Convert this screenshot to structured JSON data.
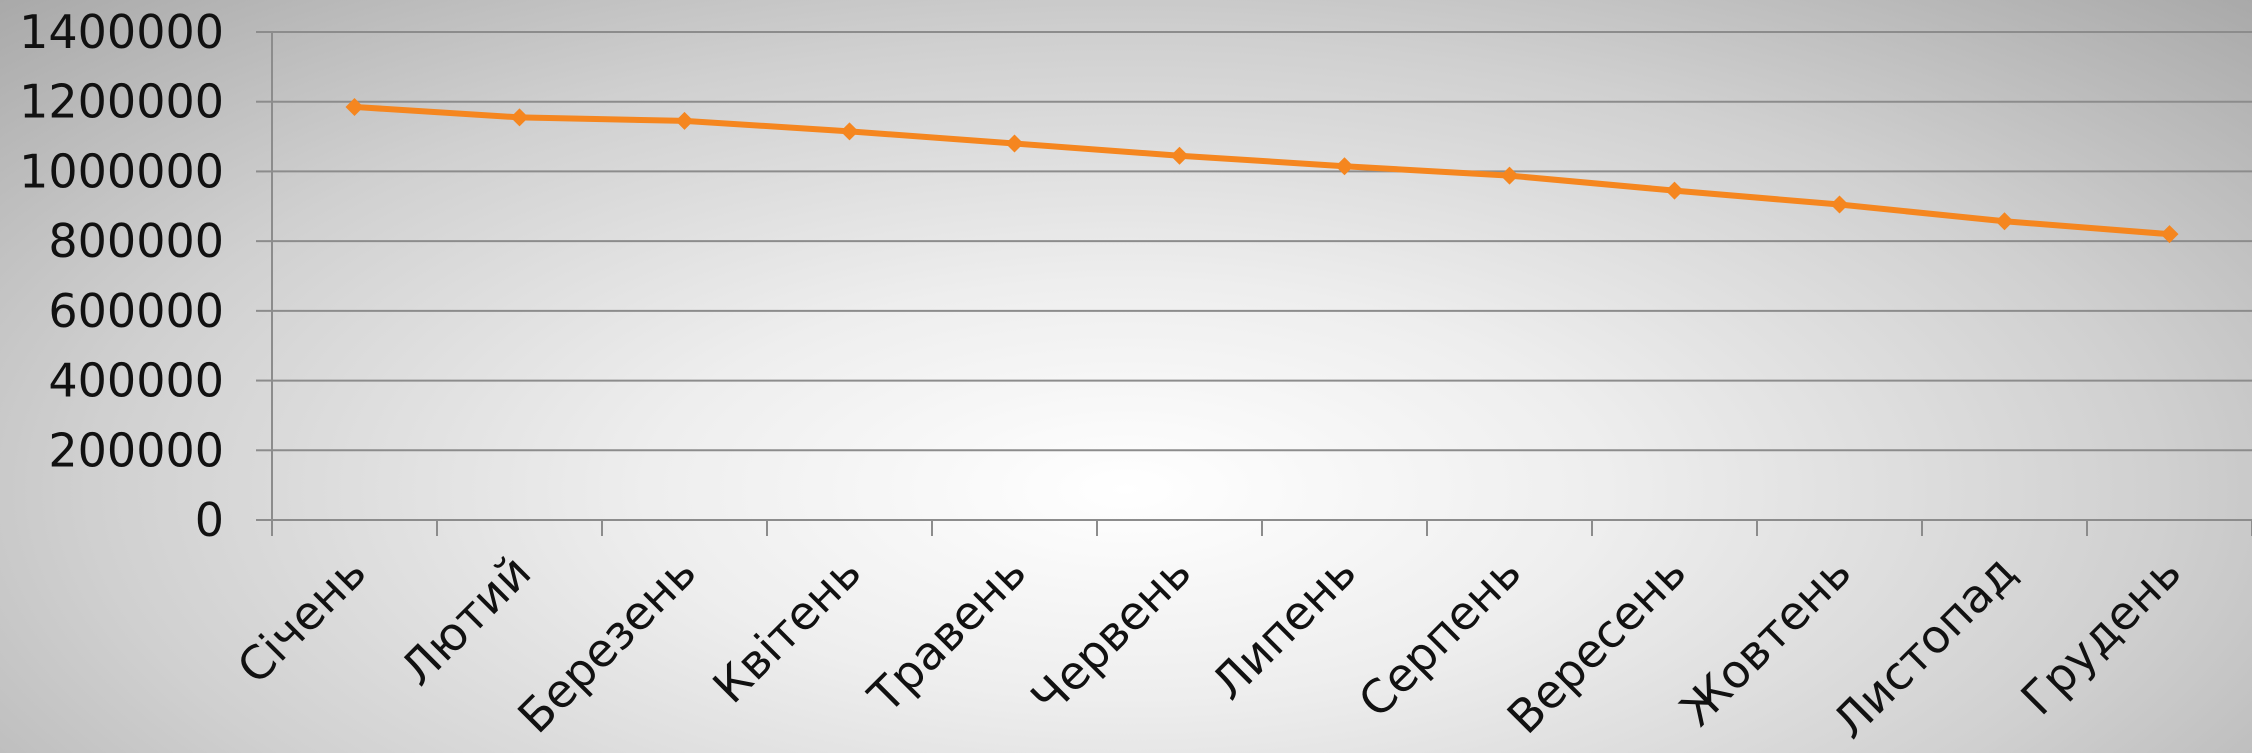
{
  "chart_data": {
    "type": "line",
    "categories": [
      "Січень",
      "Лютий",
      "Березень",
      "Квітень",
      "Травень",
      "Червень",
      "Липень",
      "Серпень",
      "Вересень",
      "Жовтень",
      "Листопад",
      "Грудень"
    ],
    "series": [
      {
        "values": [
          1185000,
          1155000,
          1145000,
          1115000,
          1080000,
          1045000,
          1015000,
          988000,
          945000,
          905000,
          857000,
          820000
        ],
        "color": "#f5861f",
        "marker": "diamond"
      }
    ],
    "ylim": [
      0,
      1400000
    ],
    "yticks": [
      "0",
      "200000",
      "400000",
      "600000",
      "800000",
      "1000000",
      "1200000",
      "1400000"
    ],
    "grid": true,
    "legend": "none"
  }
}
